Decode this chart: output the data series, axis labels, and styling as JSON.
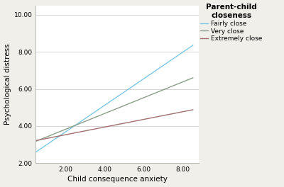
{
  "title": "Parent-child\ncloseness",
  "xlabel": "Child consequence anxiety",
  "ylabel": "Psychological distress",
  "xlim": [
    0.5,
    8.8
  ],
  "ylim": [
    2.0,
    10.5
  ],
  "xticks": [
    2.0,
    4.0,
    6.0,
    8.0
  ],
  "yticks": [
    2.0,
    4.0,
    6.0,
    8.0,
    10.0
  ],
  "lines": [
    {
      "label": "Fairly close",
      "color": "#7ec8e3",
      "x_start": 0.5,
      "y_start": 2.6,
      "x_end": 8.5,
      "y_end": 8.35
    },
    {
      "label": "Very close",
      "color": "#8a9e8a",
      "x_start": 0.5,
      "y_start": 3.18,
      "x_end": 8.5,
      "y_end": 6.6
    },
    {
      "label": "Extremely close",
      "color": "#a07070",
      "x_start": 0.5,
      "y_start": 3.22,
      "x_end": 8.5,
      "y_end": 4.88
    }
  ],
  "bg_color": "#f0efea",
  "plot_bg_color": "#ffffff",
  "grid_color": "#cccccc",
  "tick_label_size": 6.5,
  "axis_label_size": 7.5,
  "legend_title_size": 7.5,
  "legend_label_size": 6.5
}
